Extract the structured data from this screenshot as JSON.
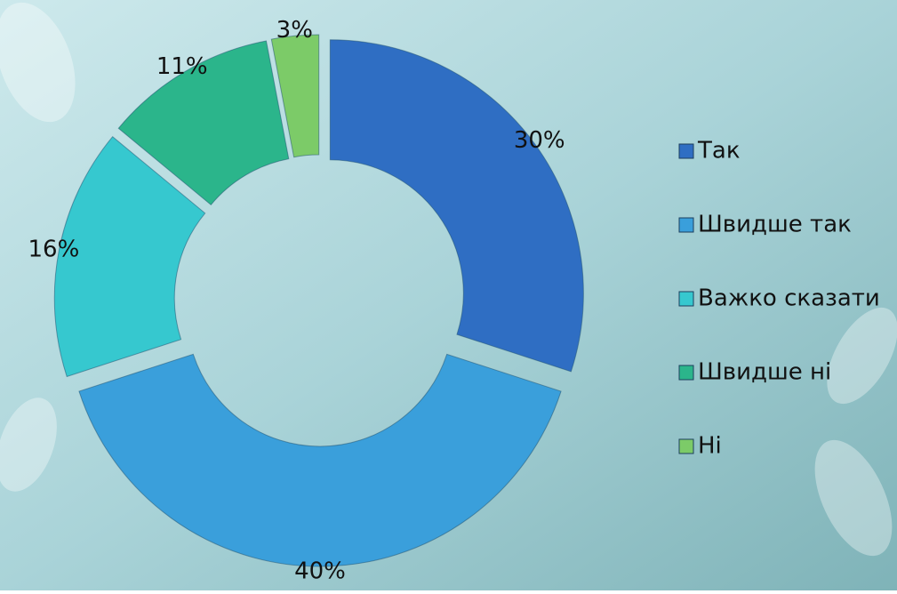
{
  "chart_data": {
    "type": "donut",
    "categories": [
      "Так",
      "Швидше так",
      "Важко сказати",
      "Швидше ні",
      "Ні"
    ],
    "values": [
      30,
      40,
      16,
      11,
      3
    ],
    "value_labels": [
      "30%",
      "40%",
      "16%",
      "11%",
      "3%"
    ],
    "colors": [
      "#2f6ec3",
      "#3a9fdb",
      "#36c8cf",
      "#2bb58b",
      "#7ccb68"
    ],
    "legend": "right"
  }
}
